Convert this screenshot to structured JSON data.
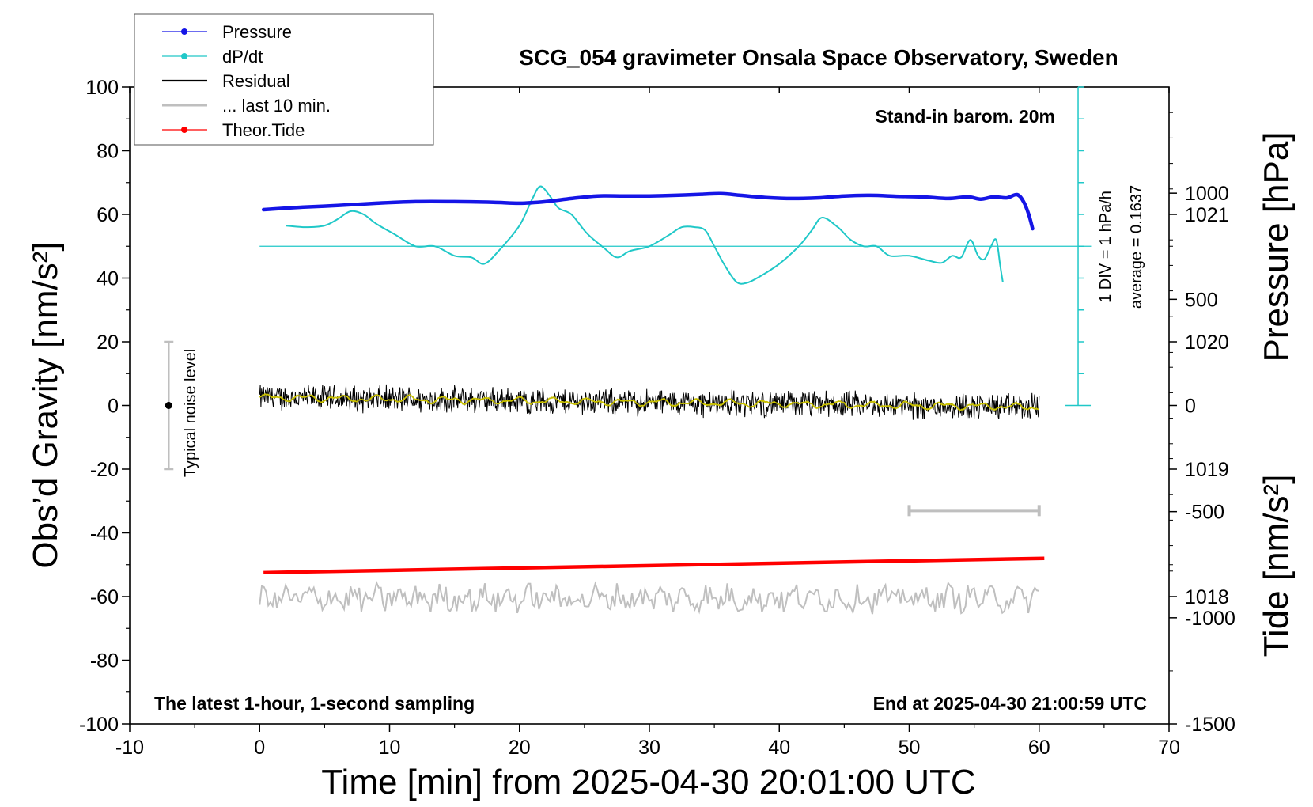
{
  "chart_data": {
    "type": "line",
    "title": "SCG_054 gravimeter Onsala Space Observatory, Sweden",
    "xlabel": "Time [min] from 2025-04-30 20:01:00 UTC",
    "ylabel_left": "Obs’d Gravity [nm/s²]",
    "ylabel_right_top": "Pressure [hPa]",
    "ylabel_right_bottom": "Tide [nm/s²]",
    "xlim": [
      -10,
      70
    ],
    "ylim": [
      -100,
      100
    ],
    "pressure_ylim": [
      1017,
      1022
    ],
    "tide_ylim": [
      -1500,
      1500
    ],
    "x_ticks": [
      "-10",
      "0",
      "10",
      "20",
      "30",
      "40",
      "50",
      "60",
      "70"
    ],
    "x_tick_values": [
      -10,
      0,
      10,
      20,
      30,
      40,
      50,
      60,
      70
    ],
    "y_ticks": [
      "100",
      "80",
      "60",
      "40",
      "20",
      "0",
      "-20",
      "-40",
      "-60",
      "-80",
      "-100"
    ],
    "y_tick_values": [
      100,
      80,
      60,
      40,
      20,
      0,
      -20,
      -40,
      -60,
      -80,
      -100
    ],
    "pressure_ticks": [
      "1021",
      "1020",
      "1019",
      "1018"
    ],
    "pressure_tick_values": [
      1021,
      1020,
      1019,
      1018
    ],
    "tide_ticks": [
      "1000",
      "500",
      "0",
      "-500",
      "-1000",
      "-1500"
    ],
    "tide_tick_values": [
      1000,
      500,
      0,
      -500,
      -1000,
      -1500
    ],
    "grid": false,
    "legend_position": "top-left",
    "legend": [
      {
        "name": "Pressure",
        "color": "#1515e6",
        "marker": true
      },
      {
        "name": "dP/dt",
        "color": "#20c8c8",
        "marker": true
      },
      {
        "name": "Residual",
        "color": "#000000",
        "marker": false
      },
      {
        "name": "... last 10 min.",
        "color": "#bfbfbf",
        "marker": false
      },
      {
        "name": "Theor.Tide",
        "color": "#ff0000",
        "marker": true
      }
    ],
    "annotations": {
      "barometer": "Stand-in barom. 20m",
      "sampling": "The latest 1-hour, 1-second sampling",
      "end_time": "End at 2025-04-30 21:00:59 UTC",
      "noise": "Typical noise level",
      "div_scale": "1 DIV = 1 hPa/h",
      "average": "average = 0.1637"
    },
    "noise_bar": {
      "x": -7,
      "center": 0,
      "low": -20,
      "high": 20
    },
    "ten_min_bar": {
      "x_start": 50,
      "x_end": 60,
      "y": -33
    },
    "dpdt_scale": {
      "x": 63,
      "base_y": 0,
      "top_y": 100,
      "reference_y": 50,
      "div_count": 10
    },
    "series": [
      {
        "name": "Pressure",
        "color": "#1515e6",
        "x": [
          0.3,
          3,
          6,
          9,
          12,
          15,
          18,
          20,
          22,
          24,
          26,
          28,
          30,
          32,
          34,
          35.5,
          37,
          39,
          41,
          43,
          45,
          47,
          49,
          51,
          53,
          54.5,
          55.5,
          56.5,
          57.5,
          58.3,
          58.8,
          59.2,
          59.5
        ],
        "y": [
          61.5,
          62.2,
          62.8,
          63.5,
          64.0,
          64.0,
          63.8,
          63.5,
          64.0,
          65.0,
          65.8,
          65.8,
          65.8,
          66.0,
          66.3,
          66.5,
          66.0,
          65.3,
          65.0,
          65.2,
          65.8,
          66.0,
          65.7,
          65.5,
          65.0,
          65.5,
          64.8,
          65.5,
          65.2,
          66.2,
          64.0,
          60.0,
          55.5
        ]
      },
      {
        "name": "dP/dt",
        "color": "#20c8c8",
        "x": [
          2,
          3.5,
          5,
          6,
          7,
          8,
          9,
          10.5,
          12,
          13.5,
          15,
          16.3,
          17.3,
          18.5,
          20,
          21,
          21.6,
          22.3,
          23,
          24,
          25.2,
          26.5,
          27.5,
          28.5,
          30,
          31.5,
          32.5,
          33.5,
          34.3,
          35,
          35.8,
          36.7,
          37.5,
          38.5,
          40,
          41.5,
          42.5,
          43.3,
          44.5,
          45.5,
          46.5,
          47.5,
          48.5,
          50,
          51.5,
          52.5,
          53.3,
          54,
          54.7,
          55.3,
          55.8,
          56.3,
          56.7,
          57,
          57.2
        ],
        "y": [
          56.5,
          56,
          56.5,
          58.5,
          61,
          60,
          57,
          53.5,
          50,
          50,
          47,
          46.5,
          44.5,
          49,
          56.5,
          65,
          68.8,
          66,
          62,
          60,
          54,
          49.5,
          46.5,
          48.5,
          50,
          53.5,
          56,
          56,
          55,
          50,
          44,
          38.8,
          38.5,
          40.5,
          44.5,
          50,
          55,
          59,
          56,
          52,
          50,
          50,
          47,
          47,
          45.5,
          44.8,
          47,
          46.5,
          52,
          47,
          46,
          50,
          52,
          44,
          38.8
        ]
      },
      {
        "name": "Residual",
        "color": "#000000",
        "x_start": 0,
        "x_end": 60,
        "trend_start": 2.5,
        "trend_end": -0.5,
        "noise_amplitude": 5
      },
      {
        "name": "... last 10 min.",
        "color": "#bfbfbf",
        "x_start": 0,
        "x_end": 60,
        "level": -60.5,
        "noise_amplitude": 5
      },
      {
        "name": "Theor.Tide",
        "color": "#ff0000",
        "x": [
          0.3,
          60.4
        ],
        "y": [
          -52.5,
          -48
        ]
      }
    ]
  }
}
